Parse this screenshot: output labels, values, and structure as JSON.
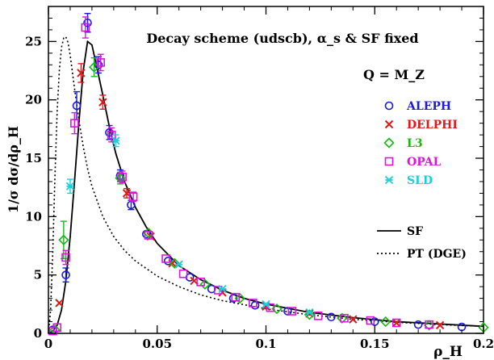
{
  "chart_data": {
    "type": "scatter",
    "title": "Decay scheme (udscb), α_s & SF fixed",
    "annotation": "Q = M_Z",
    "xlabel": "ρ_H",
    "ylabel": "1/σ dσ/dρ_H",
    "xlim": [
      0,
      0.2
    ],
    "ylim": [
      0,
      28
    ],
    "x_ticks": [
      "0",
      "0.05",
      "0.1",
      "0.15",
      "0.2"
    ],
    "y_ticks": [
      "0",
      "5",
      "10",
      "15",
      "20",
      "25"
    ],
    "grid": false,
    "legend_position": "right",
    "series": [
      {
        "name": "ALEPH",
        "marker": "circle",
        "color": "#1a1adc",
        "points": [
          [
            0.002,
            0.3,
            0.3
          ],
          [
            0.008,
            5.0,
            0.6
          ],
          [
            0.013,
            19.5,
            1.2
          ],
          [
            0.018,
            26.6,
            0.8
          ],
          [
            0.023,
            23.0,
            0.7
          ],
          [
            0.028,
            17.2,
            0.6
          ],
          [
            0.033,
            13.5,
            0.5
          ],
          [
            0.038,
            11.0,
            0.4
          ],
          [
            0.045,
            8.5,
            0.3
          ],
          [
            0.055,
            6.2,
            0.2
          ],
          [
            0.065,
            4.8,
            0.2
          ],
          [
            0.075,
            3.8,
            0.15
          ],
          [
            0.085,
            3.0,
            0.12
          ],
          [
            0.095,
            2.4,
            0.1
          ],
          [
            0.11,
            1.9,
            0.1
          ],
          [
            0.13,
            1.4,
            0.1
          ],
          [
            0.15,
            1.0,
            0.1
          ],
          [
            0.17,
            0.75,
            0.1
          ],
          [
            0.19,
            0.55,
            0.1
          ]
        ]
      },
      {
        "name": "DELPHI",
        "marker": "x",
        "color": "#dc1a1a",
        "points": [
          [
            0.005,
            2.6,
            0.3
          ],
          [
            0.015,
            22.3,
            0.8
          ],
          [
            0.025,
            19.8,
            0.6
          ],
          [
            0.036,
            12.0,
            0.4
          ],
          [
            0.047,
            8.3,
            0.3
          ],
          [
            0.057,
            6.0,
            0.2
          ],
          [
            0.067,
            4.5,
            0.2
          ],
          [
            0.08,
            3.5,
            0.15
          ],
          [
            0.1,
            2.3,
            0.1
          ],
          [
            0.12,
            1.7,
            0.1
          ],
          [
            0.14,
            1.2,
            0.1
          ],
          [
            0.16,
            0.9,
            0.1
          ],
          [
            0.18,
            0.7,
            0.1
          ]
        ]
      },
      {
        "name": "L3",
        "marker": "diamond",
        "color": "#16b816",
        "points": [
          [
            0.003,
            0.3,
            0.2
          ],
          [
            0.007,
            8.0,
            1.6
          ],
          [
            0.021,
            22.8,
            0.8
          ],
          [
            0.033,
            13.3,
            0.5
          ],
          [
            0.046,
            8.6,
            0.3
          ],
          [
            0.058,
            6.0,
            0.2
          ],
          [
            0.072,
            4.2,
            0.2
          ],
          [
            0.088,
            3.0,
            0.12
          ],
          [
            0.105,
            2.1,
            0.1
          ],
          [
            0.12,
            1.6,
            0.1
          ],
          [
            0.135,
            1.3,
            0.1
          ],
          [
            0.155,
            1.0,
            0.1
          ],
          [
            0.175,
            0.7,
            0.1
          ],
          [
            0.2,
            0.5,
            0.1
          ]
        ]
      },
      {
        "name": "OPAL",
        "marker": "square",
        "color": "#dc14dc",
        "points": [
          [
            0.002,
            0.2,
            0.2
          ],
          [
            0.004,
            0.5,
            0.2
          ],
          [
            0.008,
            6.5,
            0.6
          ],
          [
            0.012,
            18.0,
            0.9
          ],
          [
            0.017,
            26.2,
            0.9
          ],
          [
            0.024,
            23.2,
            0.7
          ],
          [
            0.029,
            17.0,
            0.6
          ],
          [
            0.034,
            13.4,
            0.5
          ],
          [
            0.039,
            11.7,
            0.4
          ],
          [
            0.046,
            8.4,
            0.3
          ],
          [
            0.054,
            6.4,
            0.2
          ],
          [
            0.062,
            5.1,
            0.2
          ],
          [
            0.07,
            4.4,
            0.15
          ],
          [
            0.078,
            3.7,
            0.15
          ],
          [
            0.086,
            3.1,
            0.12
          ],
          [
            0.094,
            2.6,
            0.1
          ],
          [
            0.102,
            2.2,
            0.1
          ],
          [
            0.112,
            1.9,
            0.1
          ],
          [
            0.124,
            1.5,
            0.1
          ],
          [
            0.136,
            1.3,
            0.1
          ],
          [
            0.148,
            1.1,
            0.1
          ],
          [
            0.16,
            0.9,
            0.1
          ],
          [
            0.175,
            0.75,
            0.1
          ]
        ]
      },
      {
        "name": "SLD",
        "marker": "star",
        "color": "#18d0dc",
        "points": [
          [
            0.01,
            12.6,
            0.6
          ],
          [
            0.031,
            16.5,
            0.5
          ],
          [
            0.06,
            5.9,
            0.3
          ],
          [
            0.08,
            3.8,
            0.2
          ],
          [
            0.1,
            2.5,
            0.15
          ],
          [
            0.12,
            1.8,
            0.12
          ]
        ]
      }
    ],
    "curves": [
      {
        "name": "SF",
        "style": "solid",
        "points": [
          [
            0.0,
            0.0
          ],
          [
            0.002,
            0.2
          ],
          [
            0.004,
            0.7
          ],
          [
            0.006,
            2.0
          ],
          [
            0.008,
            4.5
          ],
          [
            0.01,
            8.3
          ],
          [
            0.012,
            13.0
          ],
          [
            0.014,
            18.0
          ],
          [
            0.016,
            22.5
          ],
          [
            0.018,
            25.0
          ],
          [
            0.02,
            24.7
          ],
          [
            0.022,
            23.0
          ],
          [
            0.025,
            20.4
          ],
          [
            0.028,
            17.7
          ],
          [
            0.031,
            15.4
          ],
          [
            0.035,
            13.0
          ],
          [
            0.04,
            10.8
          ],
          [
            0.045,
            9.1
          ],
          [
            0.05,
            7.7
          ],
          [
            0.06,
            5.8
          ],
          [
            0.07,
            4.6
          ],
          [
            0.08,
            3.7
          ],
          [
            0.09,
            3.0
          ],
          [
            0.1,
            2.5
          ],
          [
            0.12,
            1.8
          ],
          [
            0.14,
            1.35
          ],
          [
            0.16,
            1.0
          ],
          [
            0.18,
            0.8
          ],
          [
            0.2,
            0.6
          ]
        ]
      },
      {
        "name": "PT (DGE)",
        "style": "dotted",
        "points": [
          [
            0.0,
            0.0
          ],
          [
            0.001,
            2.0
          ],
          [
            0.002,
            7.0
          ],
          [
            0.003,
            13.5
          ],
          [
            0.004,
            19.0
          ],
          [
            0.005,
            22.5
          ],
          [
            0.006,
            24.5
          ],
          [
            0.007,
            25.3
          ],
          [
            0.008,
            25.4
          ],
          [
            0.009,
            24.9
          ],
          [
            0.01,
            23.8
          ],
          [
            0.012,
            21.0
          ],
          [
            0.014,
            18.3
          ],
          [
            0.016,
            16.0
          ],
          [
            0.018,
            14.1
          ],
          [
            0.02,
            12.6
          ],
          [
            0.025,
            10.0
          ],
          [
            0.03,
            8.3
          ],
          [
            0.035,
            7.1
          ],
          [
            0.04,
            6.2
          ],
          [
            0.05,
            4.9
          ],
          [
            0.06,
            4.0
          ],
          [
            0.07,
            3.3
          ],
          [
            0.08,
            2.8
          ],
          [
            0.1,
            2.1
          ],
          [
            0.12,
            1.6
          ],
          [
            0.14,
            1.2
          ],
          [
            0.16,
            0.95
          ],
          [
            0.18,
            0.75
          ],
          [
            0.2,
            0.6
          ]
        ]
      }
    ]
  }
}
